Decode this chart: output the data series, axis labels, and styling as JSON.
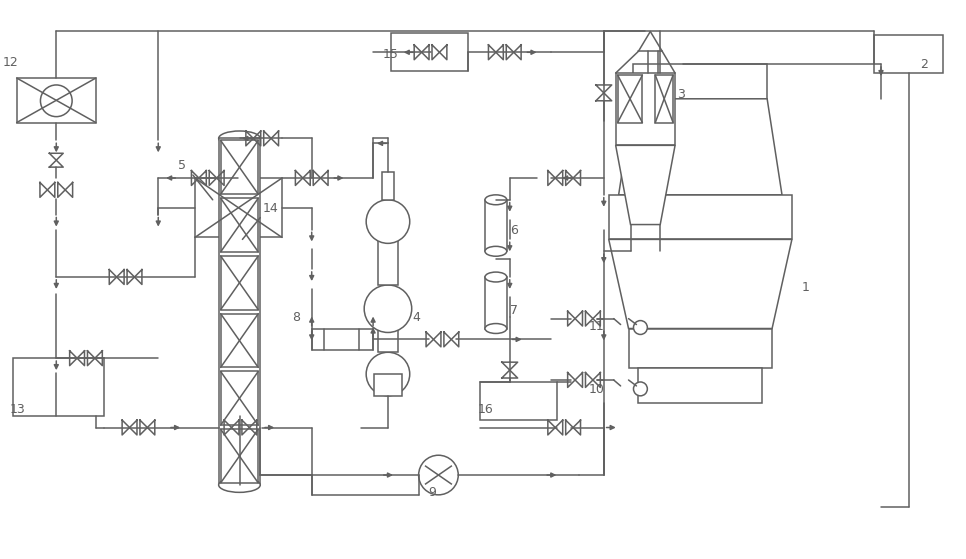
{
  "bg": "#ffffff",
  "lc": "#606060",
  "lw": 1.1,
  "fw": 9.66,
  "fh": 5.59
}
